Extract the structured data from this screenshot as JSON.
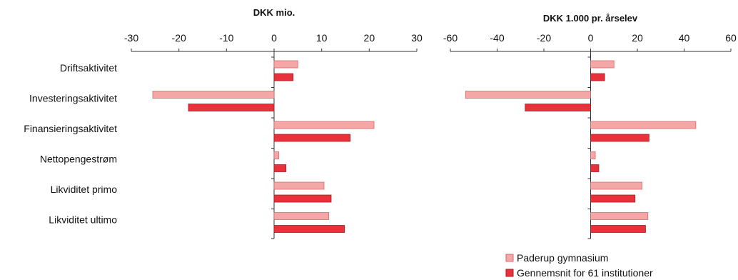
{
  "chart_data": [
    {
      "type": "bar",
      "orientation": "horizontal",
      "title": "DKK mio.",
      "categories": [
        "Driftsaktivitet",
        "Investeringsaktivitet",
        "Finansieringsaktivitet",
        "Nettopengestrøm",
        "Likviditet primo",
        "Likviditet ultimo"
      ],
      "series": [
        {
          "name": "Paderup gymnasium",
          "color": "#f4a7a7",
          "values": [
            5,
            -25.5,
            21,
            1,
            10.5,
            11.5
          ]
        },
        {
          "name": "Gennemsnit for 61 institutioner",
          "color": "#e8313a",
          "values": [
            4,
            -18,
            16,
            2.5,
            12,
            14.8
          ]
        }
      ],
      "xlim": [
        -30,
        30
      ],
      "ticks": [
        -30,
        -20,
        -10,
        0,
        10,
        20,
        30
      ],
      "tick_labels": [
        "-30",
        "-20",
        "-10",
        "0",
        "10",
        "20",
        "30"
      ],
      "axis_position": "top"
    },
    {
      "type": "bar",
      "orientation": "horizontal",
      "title": "DKK 1.000 pr. årselev",
      "categories": [
        "Driftsaktivitet",
        "Investeringsaktivitet",
        "Finansieringsaktivitet",
        "Nettopengestrøm",
        "Likviditet primo",
        "Likviditet ultimo"
      ],
      "series": [
        {
          "name": "Paderup gymnasium",
          "color": "#f4a7a7",
          "values": [
            10,
            -53.5,
            45,
            2,
            22,
            24.5
          ]
        },
        {
          "name": "Gennemsnit for 61 institutioner",
          "color": "#e8313a",
          "values": [
            6,
            -28,
            25,
            3.5,
            19,
            23.5
          ]
        }
      ],
      "xlim": [
        -60,
        60
      ],
      "ticks": [
        -60,
        -40,
        -20,
        0,
        20,
        40,
        60
      ],
      "tick_labels": [
        "-60",
        "-40",
        "-20",
        "0",
        "20",
        "40",
        "60"
      ],
      "axis_position": "top"
    }
  ],
  "legend": {
    "placement": "bottom-right",
    "items": [
      {
        "label": "Paderup gymnasium",
        "color": "#f4a7a7"
      },
      {
        "label": "Gennemsnit for 61 institutioner",
        "color": "#e8313a"
      }
    ]
  }
}
